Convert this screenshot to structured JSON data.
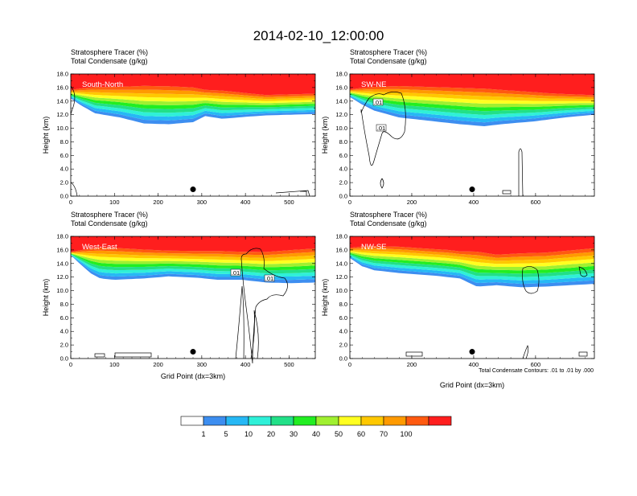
{
  "figure": {
    "title": "2014-02-10_12:00:00",
    "xlabel": "Grid Point (dx=3km)",
    "ylabel": "Height (km)",
    "header_line1": "Stratosphere Tracer   (%)",
    "header_line2": "Total Condensate   (g/kg)",
    "contour_note": "Total Condensate Contours: .01 to .01 by .000"
  },
  "chart_data": [
    {
      "type": "heatmap",
      "panel_label": "South-North",
      "xlabel": "",
      "ylabel": "Height (km)",
      "xlim": [
        0,
        560
      ],
      "ylim": [
        0,
        18
      ],
      "xticks": [
        0,
        100,
        200,
        300,
        400,
        500
      ],
      "yticks": [
        0.0,
        2.0,
        4.0,
        6.0,
        8.0,
        10.0,
        12.0,
        14.0,
        16.0,
        18.0
      ],
      "marker_x": 280,
      "marker_height_km": 1.0
    },
    {
      "type": "heatmap",
      "panel_label": "SW-NE",
      "xlabel": "",
      "ylabel": "Height (km)",
      "xlim": [
        0,
        790
      ],
      "ylim": [
        0,
        18
      ],
      "xticks": [
        0,
        200,
        400,
        600
      ],
      "yticks": [
        0.0,
        2.0,
        4.0,
        6.0,
        8.0,
        10.0,
        12.0,
        14.0,
        16.0,
        18.0
      ],
      "marker_x": 395,
      "marker_height_km": 1.0,
      "contour_labels": [
        ".01",
        ".01"
      ]
    },
    {
      "type": "heatmap",
      "panel_label": "West-East",
      "xlabel": "Grid Point (dx=3km)",
      "ylabel": "Height (km)",
      "xlim": [
        0,
        560
      ],
      "ylim": [
        0,
        18
      ],
      "xticks": [
        0,
        100,
        200,
        300,
        400,
        500
      ],
      "yticks": [
        0.0,
        2.0,
        4.0,
        6.0,
        8.0,
        10.0,
        12.0,
        14.0,
        16.0,
        18.0
      ],
      "marker_x": 280,
      "marker_height_km": 1.0,
      "contour_labels": [
        ".01",
        ".01"
      ]
    },
    {
      "type": "heatmap",
      "panel_label": "NW-SE",
      "xlabel": "Grid Point (dx=3km)",
      "ylabel": "Height (km)",
      "xlim": [
        0,
        790
      ],
      "ylim": [
        0,
        18
      ],
      "xticks": [
        0,
        200,
        400,
        600
      ],
      "yticks": [
        0.0,
        2.0,
        4.0,
        6.0,
        8.0,
        10.0,
        12.0,
        14.0,
        16.0,
        18.0
      ],
      "marker_x": 395,
      "marker_height_km": 1.0
    }
  ],
  "colorbar": {
    "levels": [
      1,
      5,
      10,
      20,
      30,
      40,
      50,
      60,
      70,
      100
    ],
    "colors": [
      "#ffffff",
      "#3d8ef0",
      "#26b8f5",
      "#2ff0d8",
      "#22e088",
      "#22ee22",
      "#a0f030",
      "#ffff20",
      "#ffc800",
      "#ff9a00",
      "#ff5a10",
      "#ff1e1e"
    ]
  }
}
